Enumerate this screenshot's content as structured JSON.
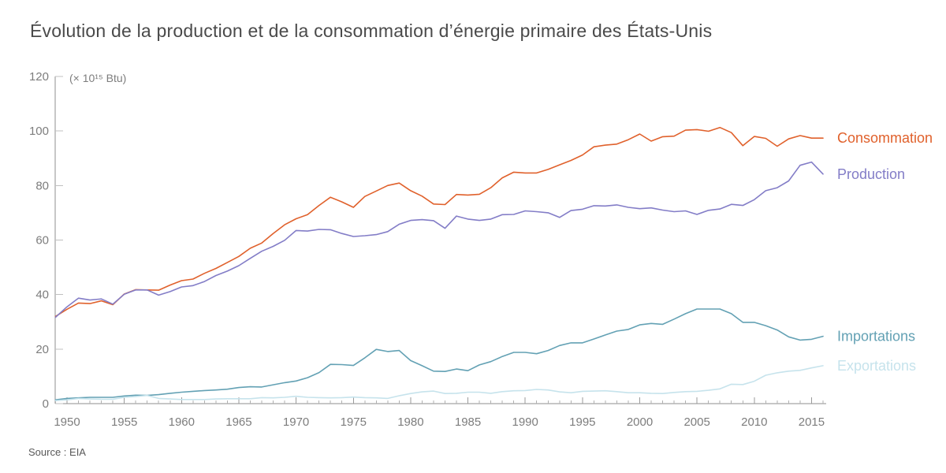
{
  "page": {
    "title": "Évolution de la production et de la consommation d’énergie primaire des États-Unis",
    "source": "Source : EIA"
  },
  "colors": {
    "title": "#4a4a4a",
    "axis": "#8f8f8f",
    "tick_major": "#9a9a9a",
    "tick_minor": "#b0b0b0",
    "y_tick": "#c0c0c0",
    "tick_label": "#7d7d7d",
    "source": "#595959"
  },
  "chart_data": {
    "type": "line",
    "title": "Évolution de la production et de la consommation d’énergie primaire des États-Unis",
    "unit_label": "(× 10¹⁵ Btu)",
    "grid": false,
    "legend_position": "right-of-line-ends",
    "xlim": [
      1949,
      2016
    ],
    "ylim": [
      0,
      120
    ],
    "y_ticks": [
      0,
      20,
      40,
      60,
      80,
      100,
      120
    ],
    "x_tick_labels": [
      1950,
      1955,
      1960,
      1965,
      1970,
      1975,
      1980,
      1985,
      1990,
      1995,
      2000,
      2005,
      2010,
      2015
    ],
    "x": [
      1949,
      1950,
      1951,
      1952,
      1953,
      1954,
      1955,
      1956,
      1957,
      1958,
      1959,
      1960,
      1961,
      1962,
      1963,
      1964,
      1965,
      1966,
      1967,
      1968,
      1969,
      1970,
      1971,
      1972,
      1973,
      1974,
      1975,
      1976,
      1977,
      1978,
      1979,
      1980,
      1981,
      1982,
      1983,
      1984,
      1985,
      1986,
      1987,
      1988,
      1989,
      1990,
      1991,
      1992,
      1993,
      1994,
      1995,
      1996,
      1997,
      1998,
      1999,
      2000,
      2001,
      2002,
      2003,
      2004,
      2005,
      2006,
      2007,
      2008,
      2009,
      2010,
      2011,
      2012,
      2013,
      2014,
      2015,
      2016
    ],
    "series": [
      {
        "name": "Consommation",
        "color": "#e0612c",
        "values": [
          32.0,
          34.6,
          36.9,
          36.7,
          37.7,
          36.3,
          40.2,
          41.8,
          41.7,
          41.6,
          43.5,
          45.1,
          45.7,
          47.8,
          49.6,
          51.8,
          54.0,
          57.0,
          58.9,
          62.4,
          65.6,
          67.8,
          69.3,
          72.7,
          75.7,
          74.0,
          72.0,
          76.0,
          78.0,
          80.0,
          80.9,
          78.1,
          76.1,
          73.2,
          73.0,
          76.7,
          76.5,
          76.8,
          79.2,
          82.8,
          84.9,
          84.6,
          84.6,
          85.9,
          87.6,
          89.2,
          91.2,
          94.2,
          94.8,
          95.2,
          96.8,
          98.9,
          96.3,
          97.9,
          98.1,
          100.3,
          100.5,
          99.9,
          101.3,
          99.4,
          94.6,
          98.0,
          97.3,
          94.4,
          97.1,
          98.3,
          97.4,
          97.4
        ]
      },
      {
        "name": "Production",
        "color": "#837dc7",
        "values": [
          31.7,
          35.5,
          38.7,
          38.0,
          38.4,
          36.5,
          40.1,
          41.7,
          41.7,
          39.8,
          41.1,
          42.8,
          43.3,
          44.8,
          47.0,
          48.6,
          50.6,
          53.3,
          55.9,
          57.7,
          59.9,
          63.5,
          63.3,
          63.9,
          63.8,
          62.4,
          61.3,
          61.6,
          62.0,
          63.1,
          65.8,
          67.2,
          67.5,
          67.1,
          64.3,
          68.8,
          67.7,
          67.2,
          67.7,
          69.3,
          69.4,
          70.7,
          70.4,
          70.0,
          68.3,
          70.8,
          71.3,
          72.6,
          72.5,
          72.9,
          72.0,
          71.5,
          71.8,
          71.0,
          70.4,
          70.7,
          69.4,
          70.9,
          71.4,
          73.1,
          72.7,
          74.8,
          78.1,
          79.2,
          81.7,
          87.4,
          88.6,
          84.2
        ]
      },
      {
        "name": "Importations",
        "color": "#63a1b4",
        "values": [
          1.4,
          1.9,
          2.1,
          2.3,
          2.3,
          2.3,
          2.8,
          3.1,
          3.0,
          3.3,
          3.8,
          4.2,
          4.5,
          4.8,
          5.0,
          5.3,
          5.9,
          6.2,
          6.1,
          6.9,
          7.7,
          8.3,
          9.5,
          11.4,
          14.4,
          14.3,
          14.0,
          16.8,
          19.9,
          19.1,
          19.5,
          15.8,
          13.9,
          11.9,
          11.8,
          12.7,
          12.1,
          14.2,
          15.4,
          17.3,
          18.8,
          18.8,
          18.3,
          19.5,
          21.3,
          22.3,
          22.3,
          23.7,
          25.2,
          26.6,
          27.2,
          28.9,
          29.4,
          29.1,
          31.0,
          33.0,
          34.7,
          34.7,
          34.7,
          33.0,
          29.8,
          29.8,
          28.6,
          27.0,
          24.5,
          23.3,
          23.6,
          24.7
        ]
      },
      {
        "name": "Exportations",
        "color": "#c6e3ec",
        "values": [
          1.1,
          1.4,
          1.9,
          1.7,
          1.6,
          1.6,
          2.3,
          2.6,
          3.0,
          1.9,
          1.7,
          1.5,
          1.5,
          1.5,
          1.7,
          1.8,
          1.8,
          1.8,
          2.2,
          2.1,
          2.3,
          2.7,
          2.3,
          2.2,
          2.1,
          2.2,
          2.4,
          2.2,
          2.1,
          1.9,
          2.9,
          3.7,
          4.3,
          4.6,
          3.7,
          3.8,
          4.2,
          4.2,
          3.8,
          4.4,
          4.7,
          4.8,
          5.2,
          5.0,
          4.3,
          4.0,
          4.5,
          4.6,
          4.7,
          4.4,
          4.0,
          4.0,
          3.8,
          3.7,
          4.1,
          4.4,
          4.5,
          4.9,
          5.4,
          7.1,
          7.0,
          8.2,
          10.4,
          11.3,
          11.9,
          12.2,
          13.1,
          13.9
        ]
      }
    ]
  }
}
